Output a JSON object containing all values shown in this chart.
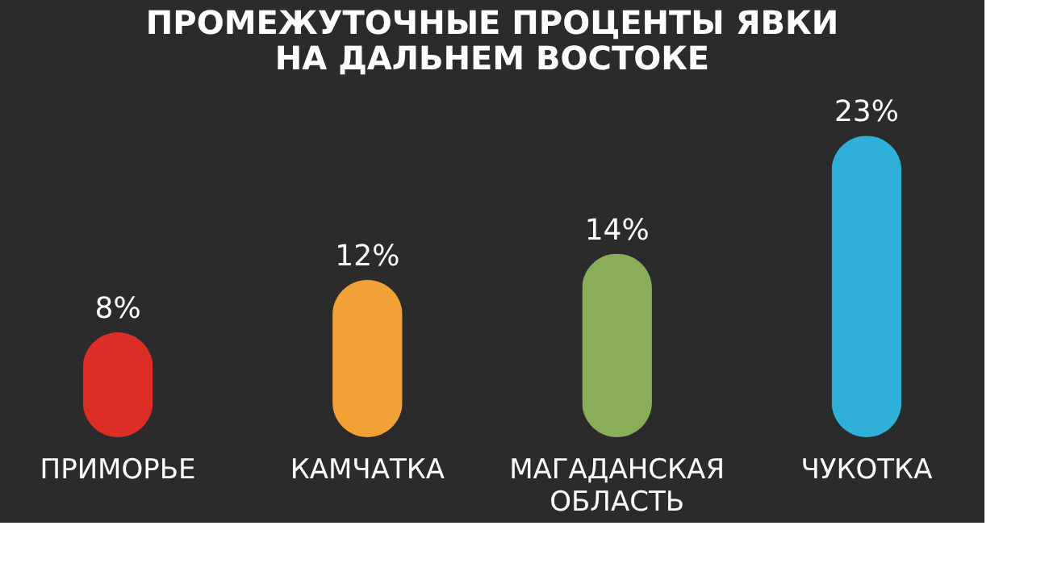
{
  "chart_data": {
    "type": "bar",
    "title": "ПРОМЕЖУТОЧНЫЕ ПРОЦЕНТЫ ЯВКИ\nНА ДАЛЬНЕМ ВОСТОКЕ",
    "categories": [
      "ПРИМОРЬЕ",
      "КАМЧАТКА",
      "МАГАДАНСКАЯ ОБЛАСТЬ",
      "ЧУКОТКА"
    ],
    "values": [
      8,
      12,
      14,
      23
    ],
    "value_labels": [
      "8%",
      "12%",
      "14%",
      "23%"
    ],
    "colors": [
      "#dc2e26",
      "#f1a136",
      "#8aad5a",
      "#2eb0d8"
    ],
    "grid": false
  }
}
